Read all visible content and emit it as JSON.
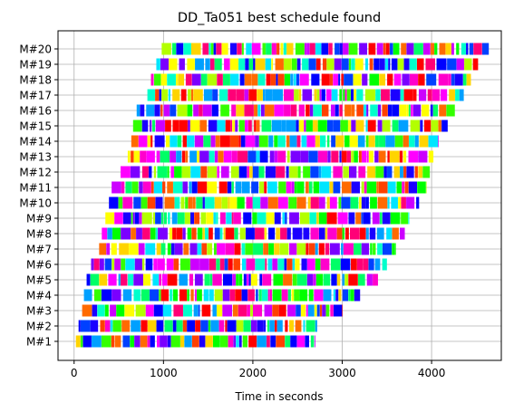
{
  "chart_data": {
    "type": "gantt",
    "title": "DD_Ta051 best schedule found",
    "xlabel": "Time in seconds",
    "ylabel": "",
    "xlim": [
      -180,
      4780
    ],
    "xticks": [
      0,
      1000,
      2000,
      3000,
      4000
    ],
    "xtick_labels": [
      "0",
      "1000",
      "2000",
      "3000",
      "4000"
    ],
    "grid": true,
    "machines": [
      {
        "label": "M#1",
        "start": 20,
        "end": 2700
      },
      {
        "label": "M#2",
        "start": 50,
        "end": 2720
      },
      {
        "label": "M#3",
        "start": 90,
        "end": 3000
      },
      {
        "label": "M#4",
        "start": 110,
        "end": 3200
      },
      {
        "label": "M#5",
        "start": 140,
        "end": 3400
      },
      {
        "label": "M#6",
        "start": 190,
        "end": 3500
      },
      {
        "label": "M#7",
        "start": 280,
        "end": 3600
      },
      {
        "label": "M#8",
        "start": 310,
        "end": 3700
      },
      {
        "label": "M#9",
        "start": 350,
        "end": 3750
      },
      {
        "label": "M#10",
        "start": 390,
        "end": 3860
      },
      {
        "label": "M#11",
        "start": 420,
        "end": 3940
      },
      {
        "label": "M#12",
        "start": 520,
        "end": 3980
      },
      {
        "label": "M#13",
        "start": 600,
        "end": 4020
      },
      {
        "label": "M#14",
        "start": 640,
        "end": 4080
      },
      {
        "label": "M#15",
        "start": 660,
        "end": 4180
      },
      {
        "label": "M#16",
        "start": 700,
        "end": 4260
      },
      {
        "label": "M#17",
        "start": 820,
        "end": 4360
      },
      {
        "label": "M#18",
        "start": 860,
        "end": 4440
      },
      {
        "label": "M#19",
        "start": 920,
        "end": 4520
      },
      {
        "label": "M#20",
        "start": 980,
        "end": 4640
      }
    ],
    "job_colors": [
      "#ff0000",
      "#ff6a00",
      "#ffd400",
      "#ffff00",
      "#b3ff00",
      "#33ff00",
      "#00ff66",
      "#00ffcc",
      "#00e5ff",
      "#00a0ff",
      "#0040ff",
      "#1a00ff",
      "#7a00ff",
      "#cc00ff",
      "#ff00cc",
      "#ff0077",
      "#ff4000",
      "#00ff00",
      "#0000ff",
      "#ff00ff"
    ],
    "segment_seed": 51
  }
}
